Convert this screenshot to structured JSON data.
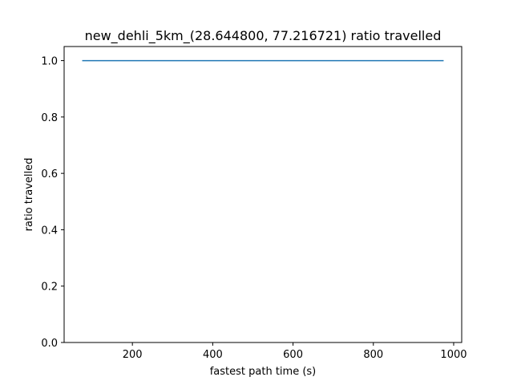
{
  "chart_data": {
    "type": "line",
    "title": "new_dehli_5km_(28.644800, 77.216721) ratio travelled",
    "xlabel": "fastest path time (s)",
    "ylabel": "ratio travelled",
    "xlim": [
      30,
      1020
    ],
    "ylim": [
      0.0,
      1.05
    ],
    "xticks": [
      200,
      400,
      600,
      800,
      1000
    ],
    "yticks": [
      0.0,
      0.2,
      0.4,
      0.6,
      0.8,
      1.0
    ],
    "xtick_labels": [
      "200",
      "400",
      "600",
      "800",
      "1000"
    ],
    "ytick_labels": [
      "0.0",
      "0.2",
      "0.4",
      "0.6",
      "0.8",
      "1.0"
    ],
    "grid": false,
    "series": [
      {
        "color": "#1f77b4",
        "x": [
          75,
          975
        ],
        "y": [
          1.0,
          1.0
        ]
      }
    ]
  }
}
